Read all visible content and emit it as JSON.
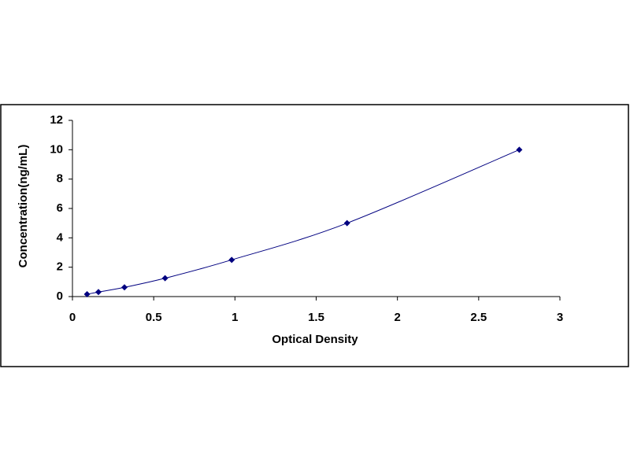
{
  "chart_data": {
    "type": "scatter",
    "x_label": "Optical Density",
    "y_label": "Concentration(ng/mL)",
    "x": [
      0.09,
      0.16,
      0.32,
      0.57,
      0.98,
      1.69,
      2.75
    ],
    "values": [
      0.16,
      0.31,
      0.63,
      1.25,
      2.5,
      5,
      10
    ],
    "color": "#000080",
    "line": true,
    "xlim": [
      0,
      3
    ],
    "ylim": [
      0,
      12
    ],
    "xticks": [
      0,
      0.5,
      1,
      1.5,
      2,
      2.5,
      3
    ],
    "yticks": [
      0,
      2,
      4,
      6,
      8,
      10,
      12
    ]
  }
}
